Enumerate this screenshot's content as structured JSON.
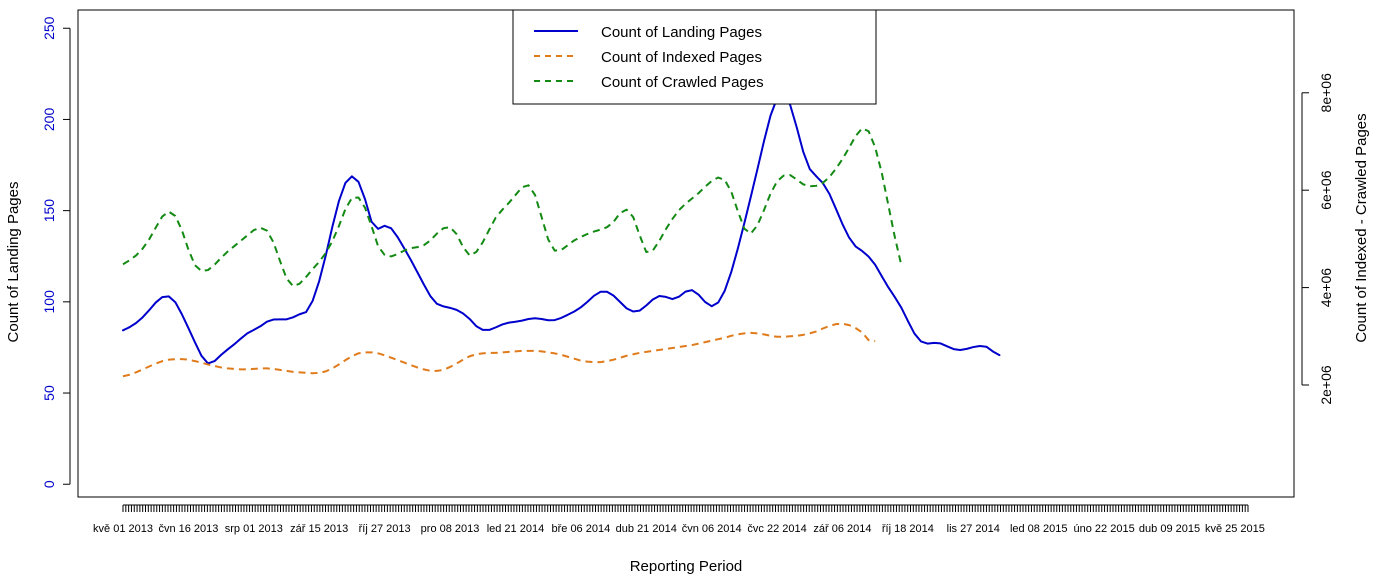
{
  "chart_data": {
    "type": "line",
    "title": "",
    "xlabel": "Reporting Period",
    "ylabel_left": "Count of Landing Pages",
    "ylabel_right": "Count of Indexed - Crawled Pages",
    "ylim_left": [
      -7,
      260
    ],
    "ylim_right": [
      -300000,
      9700000
    ],
    "yticks_left": [
      "0",
      "50",
      "100",
      "150",
      "200",
      "250"
    ],
    "yticks_left_values": [
      0,
      50,
      100,
      150,
      200,
      250
    ],
    "yticks_right": [
      "2e+06",
      "4e+06",
      "6e+06",
      "8e+06"
    ],
    "yticks_right_values": [
      2000000,
      4000000,
      6000000,
      8000000
    ],
    "xticks": [
      "kvě 01 2013",
      "čvn 16 2013",
      "srp 01 2013",
      "zář 15 2013",
      "říj 27 2013",
      "pro 08 2013",
      "led 21 2014",
      "bře 06 2014",
      "dub 21 2014",
      "čvn 06 2014",
      "čvc 22 2014",
      "zář 06 2014",
      "říj 18 2014",
      "lis 27 2014",
      "led 08 2015",
      "úno 22 2015",
      "dub 09 2015",
      "kvě 25 2015"
    ],
    "x_index": [
      0,
      0.1,
      0.2,
      0.3,
      0.4,
      0.5,
      0.6,
      0.7,
      0.8,
      0.9,
      1.0,
      1.1,
      1.2,
      1.3,
      1.4,
      1.5,
      1.6,
      1.7,
      1.8,
      1.9,
      2.0,
      2.1,
      2.2,
      2.3,
      2.4,
      2.5,
      2.6,
      2.7,
      2.8,
      2.9,
      3.0,
      3.1,
      3.2,
      3.3,
      3.4,
      3.5,
      3.6,
      3.7,
      3.8,
      3.9,
      4.0,
      4.1,
      4.2,
      4.3,
      4.4,
      4.5,
      4.6,
      4.7,
      4.8,
      4.9,
      5.0,
      5.1,
      5.2,
      5.3,
      5.4,
      5.5,
      5.6,
      5.7,
      5.8,
      5.9,
      6.0,
      6.1,
      6.2,
      6.3,
      6.4,
      6.5,
      6.6,
      6.7,
      6.8,
      6.9,
      7.0,
      7.1,
      7.2,
      7.3,
      7.4,
      7.5,
      7.6,
      7.7,
      7.8,
      7.9,
      8.0,
      8.1,
      8.2,
      8.3,
      8.4,
      8.5,
      8.6,
      8.7,
      8.8,
      8.9,
      9.0,
      9.1,
      9.2,
      9.3,
      9.4,
      9.5,
      9.6,
      9.7,
      9.8,
      9.9,
      10.0,
      10.1,
      10.2,
      10.3,
      10.4,
      10.5,
      10.6,
      10.7,
      10.8,
      10.9,
      11.0,
      11.1,
      11.2,
      11.3,
      11.4,
      11.5,
      11.6,
      11.7,
      11.8,
      11.9,
      12.0,
      12.1,
      12.2,
      12.3,
      12.4,
      12.5,
      12.6,
      12.7,
      12.8,
      12.9,
      13.0,
      13.1,
      13.2,
      13.3,
      13.4,
      13.5,
      13.6,
      13.7,
      13.8,
      13.9,
      14.0,
      14.1,
      14.2,
      14.3,
      14.4,
      14.5,
      14.6,
      14.7,
      14.8,
      14.9,
      15.0,
      15.1,
      15.2,
      15.3,
      15.4,
      15.5,
      15.6,
      15.7,
      15.8,
      15.9,
      16.0,
      16.1,
      16.2,
      16.3,
      16.4,
      16.5,
      16.6,
      16.7,
      16.8,
      16.9,
      17.0,
      17.1,
      17.2
    ],
    "series": [
      {
        "name": "Count of Landing Pages",
        "axis": "left",
        "style": "solid",
        "color": "#0000cc",
        "values": [
          84.4,
          86.1,
          88.4,
          91.5,
          95.4,
          99.6,
          102.6,
          103.0,
          99.8,
          93.2,
          85.6,
          77.8,
          70.4,
          66.2,
          67.5,
          70.9,
          73.9,
          76.7,
          79.8,
          82.7,
          84.6,
          86.6,
          89.1,
          90.3,
          90.4,
          90.4,
          91.5,
          93.2,
          94.4,
          100.6,
          111.4,
          125.4,
          141.0,
          155.1,
          165.2,
          168.8,
          165.8,
          156.3,
          143.9,
          140.0,
          141.7,
          140.3,
          135.4,
          129.3,
          123.0,
          116.3,
          109.5,
          103.1,
          98.9,
          97.5,
          96.7,
          95.6,
          93.6,
          90.6,
          86.7,
          84.6,
          84.6,
          86.0,
          87.6,
          88.6,
          89.1,
          89.7,
          90.6,
          91.0,
          90.6,
          89.9,
          90.0,
          91.2,
          92.9,
          94.7,
          97.0,
          100.0,
          103.3,
          105.5,
          105.5,
          103.4,
          99.9,
          96.4,
          94.7,
          95.2,
          98.0,
          101.3,
          103.2,
          102.7,
          101.5,
          102.8,
          105.6,
          106.4,
          103.9,
          99.9,
          97.6,
          99.6,
          106.1,
          116.4,
          129.2,
          143.2,
          157.8,
          172.8,
          188.1,
          202.1,
          211.7,
          213.9,
          208.0,
          195.7,
          182.3,
          172.8,
          168.8,
          165.1,
          159.2,
          151.0,
          142.6,
          135.3,
          130.4,
          127.9,
          124.8,
          120.3,
          114.1,
          108.0,
          102.6,
          96.8,
          89.5,
          82.6,
          78.3,
          77.1,
          77.5,
          77.2,
          75.6,
          74.1,
          73.6,
          74.2,
          75.2,
          75.8,
          75.4,
          72.8,
          70.8
        ],
        "x_offset": 0
      },
      {
        "name": "Count of Indexed Pages",
        "axis": "right",
        "style": "dashed",
        "color": "#e07b1c",
        "values": [
          2180000,
          2210000,
          2260000,
          2320000,
          2380000,
          2440000,
          2490000,
          2520000,
          2530000,
          2530000,
          2520000,
          2490000,
          2460000,
          2420000,
          2390000,
          2360000,
          2340000,
          2330000,
          2320000,
          2320000,
          2330000,
          2340000,
          2340000,
          2330000,
          2310000,
          2290000,
          2270000,
          2260000,
          2250000,
          2240000,
          2250000,
          2280000,
          2340000,
          2420000,
          2510000,
          2590000,
          2650000,
          2670000,
          2670000,
          2650000,
          2610000,
          2560000,
          2510000,
          2460000,
          2410000,
          2360000,
          2320000,
          2290000,
          2290000,
          2310000,
          2370000,
          2440000,
          2520000,
          2590000,
          2630000,
          2650000,
          2660000,
          2660000,
          2670000,
          2680000,
          2690000,
          2700000,
          2700000,
          2700000,
          2690000,
          2670000,
          2650000,
          2620000,
          2580000,
          2540000,
          2500000,
          2480000,
          2470000,
          2470000,
          2490000,
          2520000,
          2560000,
          2600000,
          2630000,
          2660000,
          2680000,
          2700000,
          2720000,
          2740000,
          2760000,
          2780000,
          2800000,
          2820000,
          2850000,
          2880000,
          2910000,
          2940000,
          2970000,
          3010000,
          3040000,
          3060000,
          3070000,
          3060000,
          3040000,
          3010000,
          2990000,
          2990000,
          3000000,
          3010000,
          3030000,
          3060000,
          3100000,
          3160000,
          3210000,
          3250000,
          3260000,
          3230000,
          3170000,
          3080000,
          2920000,
          2900000
        ],
        "x_offset": 0
      },
      {
        "name": "Count of Crawled Pages",
        "axis": "right",
        "style": "dashed",
        "color": "#138a13",
        "values": [
          4480000,
          4560000,
          4660000,
          4800000,
          4990000,
          5230000,
          5460000,
          5560000,
          5470000,
          5180000,
          4780000,
          4460000,
          4340000,
          4360000,
          4470000,
          4610000,
          4740000,
          4850000,
          4960000,
          5070000,
          5180000,
          5230000,
          5170000,
          4930000,
          4550000,
          4190000,
          4030000,
          4080000,
          4220000,
          4380000,
          4530000,
          4710000,
          4950000,
          5260000,
          5610000,
          5840000,
          5850000,
          5640000,
          5260000,
          4850000,
          4670000,
          4640000,
          4690000,
          4760000,
          4810000,
          4830000,
          4870000,
          4970000,
          5110000,
          5220000,
          5240000,
          5100000,
          4830000,
          4660000,
          4730000,
          4930000,
          5190000,
          5440000,
          5600000,
          5740000,
          5900000,
          6060000,
          6100000,
          5900000,
          5450000,
          4990000,
          4760000,
          4770000,
          4870000,
          4970000,
          5040000,
          5100000,
          5150000,
          5190000,
          5240000,
          5350000,
          5530000,
          5600000,
          5450000,
          5070000,
          4730000,
          4760000,
          4960000,
          5200000,
          5410000,
          5590000,
          5720000,
          5830000,
          5940000,
          6070000,
          6190000,
          6260000,
          6210000,
          5970000,
          5570000,
          5210000,
          5110000,
          5280000,
          5590000,
          5930000,
          6180000,
          6300000,
          6310000,
          6220000,
          6120000,
          6080000,
          6090000,
          6150000,
          6270000,
          6440000,
          6640000,
          6870000,
          7110000,
          7270000,
          7210000,
          6880000,
          6360000,
          5700000,
          5040000,
          4460000
        ],
        "x_offset": 0
      }
    ],
    "legend": {
      "position": "top-center",
      "entries": [
        "Count of Landing Pages",
        "Count of Indexed Pages",
        "Count of Crawled Pages"
      ]
    },
    "grid": false,
    "left_axis_color": "#0000cc"
  }
}
